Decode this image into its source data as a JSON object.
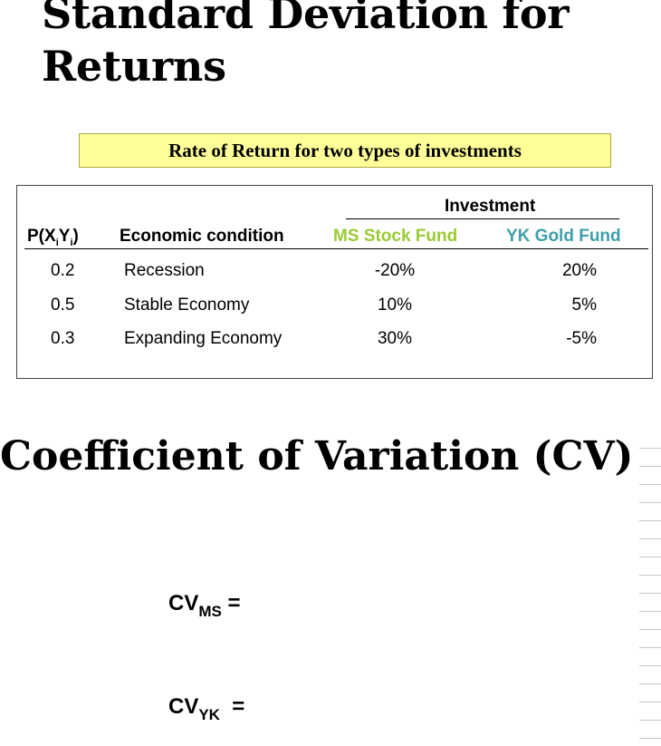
{
  "slide1": {
    "title_line1": "Standard Deviation for",
    "title_line2": "Returns",
    "caption": "Rate of Return for two types of investments"
  },
  "table": {
    "group_header": "Investment",
    "header_prob": "P(X",
    "header_prob_sub1": "i",
    "header_prob_mid": "Y",
    "header_prob_sub2": "i",
    "header_prob_end": ")",
    "header_condition": "Economic condition",
    "header_ms": "MS Stock Fund",
    "header_yk": "YK Gold Fund",
    "rows": [
      {
        "prob": "0.2",
        "condition": "Recession",
        "ms": "-20%",
        "yk": "20%"
      },
      {
        "prob": "0.5",
        "condition": "Stable Economy",
        "ms": "10%",
        "yk": "5%"
      },
      {
        "prob": "0.3",
        "condition": "Expanding Economy",
        "ms": "30%",
        "yk": "-5%"
      }
    ]
  },
  "slide2": {
    "title": "Coefficient of Variation (CV)",
    "cv_ms_main": "CV",
    "cv_ms_sub": "MS",
    "cv_ms_eq": " =",
    "cv_yk_main": "CV",
    "cv_yk_sub": "YK",
    "cv_yk_eq": "  ="
  },
  "colors": {
    "ms_green": "#99cc33",
    "yk_teal": "#3f9ea8",
    "caption_bg": "#ffff99"
  }
}
